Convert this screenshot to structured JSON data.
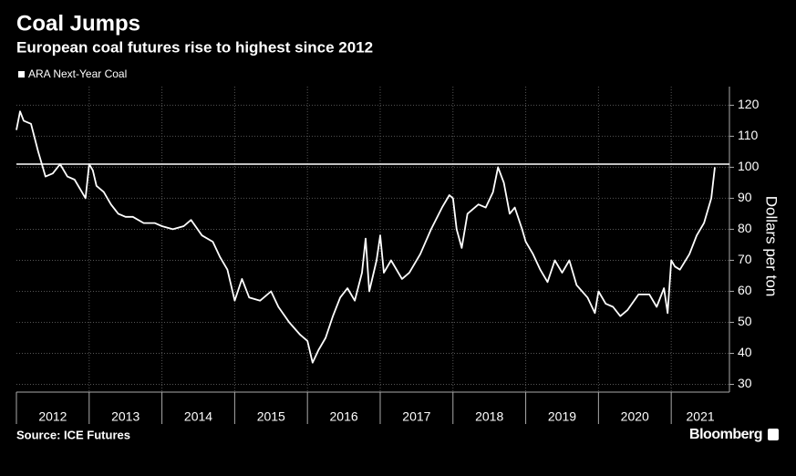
{
  "chart_data": {
    "type": "line",
    "title": "Coal Jumps",
    "subtitle": "European coal futures rise to highest since 2012",
    "y_axis_label": "Dollars per ton",
    "source": "Source: ICE Futures",
    "brand": "Bloomberg",
    "legend": "top-left",
    "grid": true,
    "reference_line": 101,
    "xlim": [
      2012,
      2021.8
    ],
    "xticks": [
      2012,
      2013,
      2014,
      2015,
      2016,
      2017,
      2018,
      2019,
      2020,
      2021
    ],
    "ylim": [
      27.5,
      126
    ],
    "yticks": [
      30,
      40,
      50,
      60,
      70,
      80,
      90,
      100,
      110,
      120
    ],
    "series": [
      {
        "name": "ARA Next-Year Coal",
        "color": "#ffffff",
        "x": [
          2012.0,
          2012.05,
          2012.1,
          2012.2,
          2012.3,
          2012.4,
          2012.5,
          2012.6,
          2012.7,
          2012.8,
          2012.9,
          2012.95,
          2013.0,
          2013.05,
          2013.1,
          2013.2,
          2013.3,
          2013.4,
          2013.5,
          2013.6,
          2013.75,
          2013.9,
          2014.0,
          2014.15,
          2014.3,
          2014.4,
          2014.55,
          2014.7,
          2014.8,
          2014.9,
          2015.0,
          2015.1,
          2015.2,
          2015.35,
          2015.5,
          2015.6,
          2015.75,
          2015.9,
          2016.0,
          2016.07,
          2016.15,
          2016.25,
          2016.35,
          2016.45,
          2016.55,
          2016.65,
          2016.75,
          2016.8,
          2016.85,
          2016.95,
          2017.0,
          2017.05,
          2017.15,
          2017.3,
          2017.4,
          2017.55,
          2017.7,
          2017.85,
          2017.95,
          2018.0,
          2018.05,
          2018.12,
          2018.2,
          2018.35,
          2018.45,
          2018.55,
          2018.62,
          2018.7,
          2018.78,
          2018.85,
          2018.95,
          2019.0,
          2019.1,
          2019.2,
          2019.3,
          2019.4,
          2019.5,
          2019.6,
          2019.7,
          2019.85,
          2019.95,
          2020.0,
          2020.1,
          2020.2,
          2020.3,
          2020.4,
          2020.55,
          2020.7,
          2020.8,
          2020.9,
          2020.95,
          2021.0,
          2021.05,
          2021.12,
          2021.25,
          2021.35,
          2021.45,
          2021.55,
          2021.6
        ],
        "values": [
          112,
          118,
          115,
          114,
          105,
          97,
          98,
          101,
          97,
          96,
          92,
          90,
          101,
          99,
          94,
          92,
          88,
          85,
          84,
          84,
          82,
          82,
          81,
          80,
          81,
          83,
          78,
          76,
          71,
          67,
          57,
          64,
          58,
          57,
          60,
          55,
          50,
          46,
          44,
          37,
          41,
          45,
          52,
          58,
          61,
          57,
          66,
          77,
          60,
          70,
          78,
          66,
          70,
          64,
          66,
          72,
          80,
          87,
          91,
          90,
          80,
          74,
          85,
          88,
          87,
          92,
          100,
          95,
          85,
          87,
          80,
          76,
          72,
          67,
          63,
          70,
          66,
          70,
          62,
          58,
          53,
          60,
          56,
          55,
          52,
          54,
          59,
          59,
          55,
          61,
          53,
          70,
          68,
          67,
          72,
          78,
          82,
          90,
          100
        ]
      }
    ]
  }
}
